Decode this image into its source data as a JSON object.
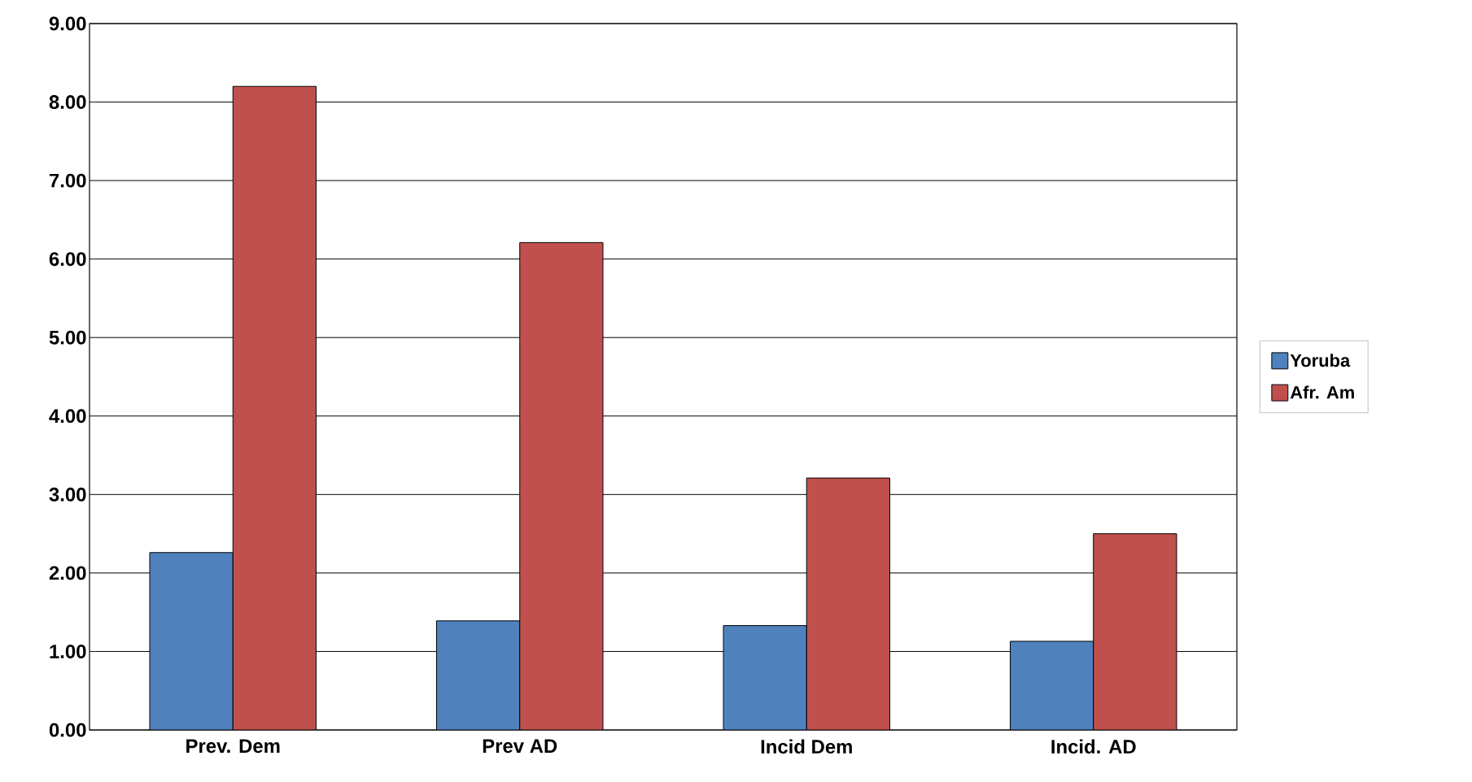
{
  "chart_data": {
    "type": "bar",
    "categories": [
      "Prev. Dem",
      "Prev AD",
      "Incid Dem",
      "Incid. AD"
    ],
    "series": [
      {
        "name": "Yoruba",
        "color": "#4f81bd",
        "values": [
          2.26,
          1.39,
          1.33,
          1.13
        ]
      },
      {
        "name": "Afr. Am",
        "color": "#c0504d",
        "values": [
          8.2,
          6.21,
          3.21,
          2.5
        ]
      }
    ],
    "ylim": [
      0,
      9
    ],
    "yticks": [
      {
        "value": 0,
        "label": "0.00"
      },
      {
        "value": 1,
        "label": "1.00"
      },
      {
        "value": 2,
        "label": "2.00"
      },
      {
        "value": 3,
        "label": "3.00"
      },
      {
        "value": 4,
        "label": "4.00"
      },
      {
        "value": 5,
        "label": "5.00"
      },
      {
        "value": 6,
        "label": "6.00"
      },
      {
        "value": 7,
        "label": "7.00"
      },
      {
        "value": 8,
        "label": "8.00"
      },
      {
        "value": 9,
        "label": "9.00"
      }
    ],
    "grid": "y",
    "legend": "right"
  }
}
